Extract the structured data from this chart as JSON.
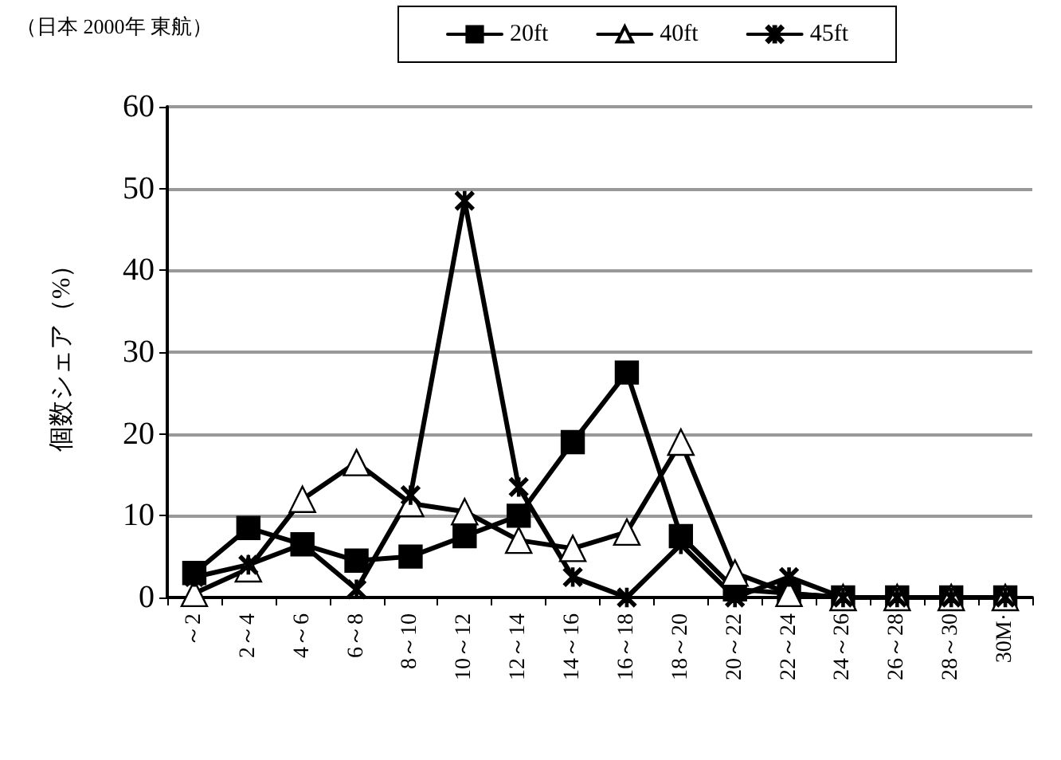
{
  "chart_data": {
    "type": "line",
    "ylabel": "個数シェア（%）",
    "annotations": [
      "（日本 2000年 東航）"
    ],
    "categories": [
      "～2",
      "2～4",
      "4～6",
      "6～8",
      "8～10",
      "10～12",
      "12～14",
      "14～16",
      "16～18",
      "18～20",
      "20～22",
      "22～24",
      "24～26",
      "26～28",
      "28～30",
      "30M·"
    ],
    "series": [
      {
        "name": "20ft",
        "color": "#000000",
        "marker": "square",
        "values": [
          3,
          8.5,
          6.5,
          4.5,
          5,
          7.5,
          10,
          19,
          27.5,
          7.5,
          1,
          0.5,
          0,
          0,
          0,
          0
        ]
      },
      {
        "name": "40ft",
        "color": "#000000",
        "marker": "triangle",
        "values": [
          0.5,
          3.5,
          12,
          16.5,
          11.5,
          10.5,
          7,
          6,
          8,
          19,
          3,
          0.5,
          0,
          0,
          0,
          0
        ]
      },
      {
        "name": "45ft",
        "color": "#000000",
        "marker": "cross",
        "values": [
          2.5,
          4,
          6.5,
          1,
          12.5,
          48.5,
          13.5,
          2.5,
          0,
          6.5,
          0,
          2.5,
          0,
          0,
          0,
          0
        ]
      }
    ],
    "ylim": [
      0,
      60
    ],
    "yticks": [
      0,
      10,
      20,
      30,
      40,
      50,
      60
    ],
    "grid": "y",
    "legend": "top"
  }
}
